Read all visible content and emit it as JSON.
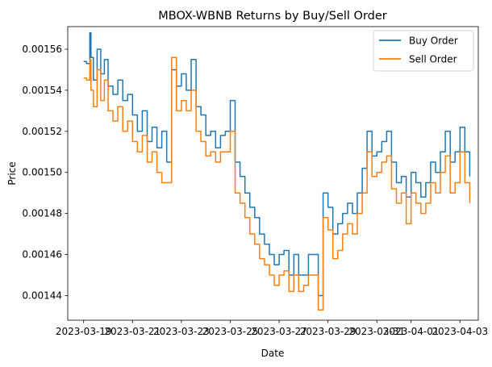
{
  "chart_data": {
    "type": "line",
    "title": "MBOX-WBNB Returns by Buy/Sell Order",
    "xlabel": "Date",
    "ylabel": "Price",
    "x_tick_labels": [
      "2023-03-19",
      "2023-03-21",
      "2023-03-23",
      "2023-03-25",
      "2023-03-27",
      "2023-03-29",
      "2023-03-31",
      "2023-04-01",
      "2023-04-03"
    ],
    "y_ticks": [
      0.00144,
      0.00146,
      0.00148,
      0.0015,
      0.00152,
      0.00154,
      0.00156
    ],
    "y_tick_labels": [
      "0.00144",
      "0.00146",
      "0.00148",
      "0.00150",
      "0.00152",
      "0.00154",
      "0.00156"
    ],
    "ylim": [
      0.001428,
      0.001571
    ],
    "x_tick_positions": [
      0,
      2,
      4,
      6,
      8,
      10,
      12,
      13.4,
      15.4
    ],
    "xlim": [
      -0.65,
      16.15
    ],
    "grid": false,
    "legend_position": "top-right",
    "series": [
      {
        "name": "Buy Order",
        "color": "#1f77b4",
        "x": [
          0.0,
          0.12,
          0.25,
          0.3,
          0.4,
          0.55,
          0.7,
          0.85,
          1.0,
          1.2,
          1.4,
          1.6,
          1.8,
          2.0,
          2.2,
          2.4,
          2.6,
          2.8,
          3.0,
          3.2,
          3.4,
          3.6,
          3.8,
          4.0,
          4.2,
          4.4,
          4.6,
          4.8,
          5.0,
          5.2,
          5.4,
          5.6,
          5.8,
          6.0,
          6.2,
          6.4,
          6.6,
          6.8,
          7.0,
          7.2,
          7.4,
          7.6,
          7.8,
          8.0,
          8.2,
          8.4,
          8.6,
          8.8,
          9.0,
          9.2,
          9.4,
          9.6,
          9.8,
          10.0,
          10.2,
          10.4,
          10.6,
          10.8,
          11.0,
          11.2,
          11.4,
          11.6,
          11.8,
          12.0,
          12.2,
          12.4,
          12.6,
          12.8,
          13.0,
          13.2,
          13.4,
          13.6,
          13.8,
          14.0,
          14.2,
          14.4,
          14.6,
          14.8,
          15.0,
          15.2,
          15.4,
          15.6,
          15.8
        ],
        "y": [
          0.001554,
          0.001553,
          0.001568,
          0.001556,
          0.001545,
          0.00156,
          0.001548,
          0.001555,
          0.001542,
          0.001538,
          0.001545,
          0.001535,
          0.001538,
          0.001528,
          0.00152,
          0.00153,
          0.001515,
          0.001522,
          0.001512,
          0.00152,
          0.001505,
          0.00155,
          0.001542,
          0.001548,
          0.00154,
          0.001555,
          0.001532,
          0.001528,
          0.001518,
          0.00152,
          0.001512,
          0.001518,
          0.00152,
          0.001535,
          0.001505,
          0.001498,
          0.00149,
          0.001483,
          0.001478,
          0.00147,
          0.001465,
          0.00146,
          0.001455,
          0.00146,
          0.001462,
          0.00145,
          0.00146,
          0.00145,
          0.00145,
          0.00146,
          0.00146,
          0.00144,
          0.00149,
          0.001483,
          0.00147,
          0.001475,
          0.00148,
          0.001485,
          0.00148,
          0.00149,
          0.001502,
          0.00152,
          0.001508,
          0.00151,
          0.001515,
          0.00152,
          0.001505,
          0.001495,
          0.001498,
          0.001488,
          0.0015,
          0.001495,
          0.001488,
          0.001495,
          0.001505,
          0.0015,
          0.00151,
          0.00152,
          0.001505,
          0.00151,
          0.001522,
          0.00151,
          0.001498
        ]
      },
      {
        "name": "Sell Order",
        "color": "#ff7f0e",
        "x": [
          0.0,
          0.12,
          0.25,
          0.3,
          0.4,
          0.55,
          0.7,
          0.85,
          1.0,
          1.2,
          1.4,
          1.6,
          1.8,
          2.0,
          2.2,
          2.4,
          2.6,
          2.8,
          3.0,
          3.2,
          3.4,
          3.6,
          3.8,
          4.0,
          4.2,
          4.4,
          4.6,
          4.8,
          5.0,
          5.2,
          5.4,
          5.6,
          5.8,
          6.0,
          6.2,
          6.4,
          6.6,
          6.8,
          7.0,
          7.2,
          7.4,
          7.6,
          7.8,
          8.0,
          8.2,
          8.4,
          8.6,
          8.8,
          9.0,
          9.2,
          9.4,
          9.6,
          9.8,
          10.0,
          10.2,
          10.4,
          10.6,
          10.8,
          11.0,
          11.2,
          11.4,
          11.6,
          11.8,
          12.0,
          12.2,
          12.4,
          12.6,
          12.8,
          13.0,
          13.2,
          13.4,
          13.6,
          13.8,
          14.0,
          14.2,
          14.4,
          14.6,
          14.8,
          15.0,
          15.2,
          15.4,
          15.6,
          15.8
        ],
        "y": [
          0.001546,
          0.001545,
          0.001555,
          0.00154,
          0.001532,
          0.00155,
          0.001535,
          0.001545,
          0.00153,
          0.001525,
          0.001532,
          0.00152,
          0.001525,
          0.001515,
          0.00151,
          0.001518,
          0.001505,
          0.00151,
          0.0015,
          0.001495,
          0.001495,
          0.001556,
          0.00153,
          0.001535,
          0.00153,
          0.00154,
          0.00152,
          0.001515,
          0.001508,
          0.00151,
          0.001505,
          0.00151,
          0.00151,
          0.00152,
          0.00149,
          0.001485,
          0.001478,
          0.00147,
          0.001465,
          0.001458,
          0.001455,
          0.00145,
          0.001445,
          0.00145,
          0.001452,
          0.001442,
          0.00145,
          0.001442,
          0.001445,
          0.00145,
          0.00145,
          0.001433,
          0.001478,
          0.001472,
          0.001458,
          0.001462,
          0.00147,
          0.001475,
          0.00147,
          0.00148,
          0.00149,
          0.00151,
          0.001498,
          0.0015,
          0.001505,
          0.001508,
          0.001492,
          0.001485,
          0.00149,
          0.001475,
          0.00149,
          0.001485,
          0.00148,
          0.001485,
          0.001495,
          0.00149,
          0.0015,
          0.001508,
          0.00149,
          0.001495,
          0.00151,
          0.001495,
          0.001485
        ]
      }
    ]
  }
}
